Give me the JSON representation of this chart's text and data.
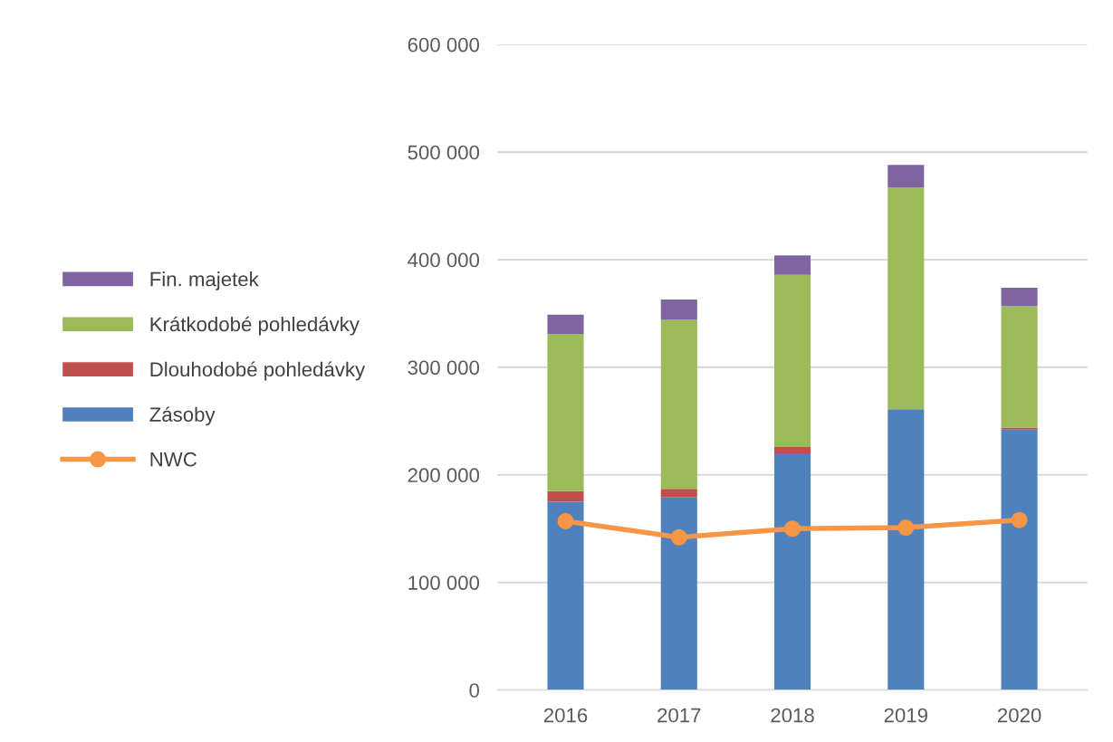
{
  "chart_data": {
    "type": "bar",
    "stacked": true,
    "categories": [
      "2016",
      "2017",
      "2018",
      "2019",
      "2020"
    ],
    "series": [
      {
        "name": "Zásoby",
        "color": "#4f81bd",
        "values": [
          175000,
          179000,
          220000,
          261000,
          242000
        ]
      },
      {
        "name": "Dlouhodobé pohledávky",
        "color": "#c0504d",
        "values": [
          10000,
          8000,
          6000,
          0,
          2000
        ]
      },
      {
        "name": "Krátkodobé pohledávky",
        "color": "#9bbb59",
        "values": [
          146000,
          157000,
          160000,
          206000,
          113000
        ]
      },
      {
        "name": "Fin. majetek",
        "color": "#8064a2",
        "values": [
          18000,
          19000,
          18000,
          21000,
          17000
        ]
      },
      {
        "name": "NWC",
        "type": "line",
        "color": "#f79646",
        "marker": "circle",
        "values": [
          157000,
          142000,
          150000,
          151000,
          158000
        ]
      }
    ],
    "ylim": [
      0,
      600000
    ],
    "yticks": [
      {
        "value": 0,
        "label": "0"
      },
      {
        "value": 100000,
        "label": "100 000"
      },
      {
        "value": 200000,
        "label": "200 000"
      },
      {
        "value": 300000,
        "label": "300 000"
      },
      {
        "value": 400000,
        "label": "400 000"
      },
      {
        "value": 500000,
        "label": "500 000"
      },
      {
        "value": 600000,
        "label": "600 000"
      }
    ],
    "grid": "y",
    "legend": "left"
  }
}
